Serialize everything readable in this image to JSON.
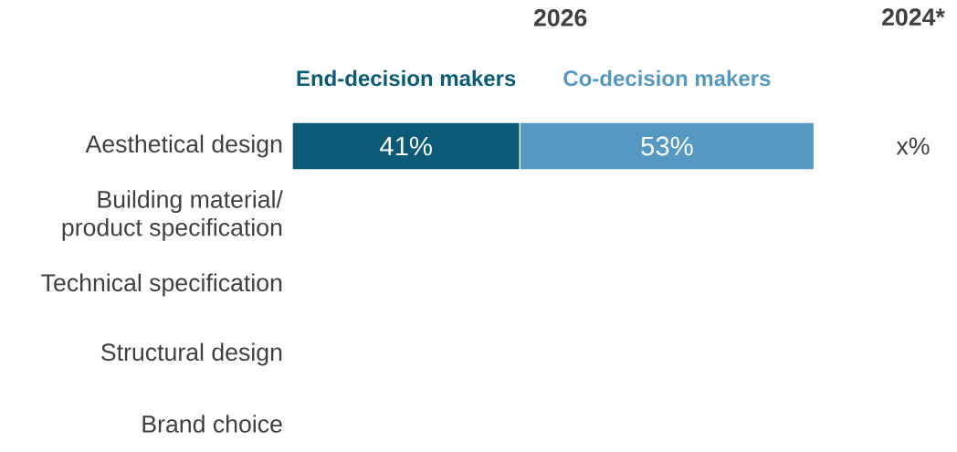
{
  "chart_data": {
    "type": "bar",
    "orientation": "horizontal",
    "stacked": true,
    "title": "2026",
    "categories": [
      "Aesthetical design",
      "Building material/\nproduct specification",
      "Technical specification",
      "Structural design",
      "Brand choice"
    ],
    "series": [
      {
        "name": "End-decision makers",
        "color": "#0b5b78",
        "values": [
          41,
          null,
          null,
          null,
          null
        ],
        "value_labels": [
          "41%",
          null,
          null,
          null,
          null
        ]
      },
      {
        "name": "Co-decision makers",
        "color": "#5598c2",
        "values": [
          53,
          null,
          null,
          null,
          null
        ],
        "value_labels": [
          "53%",
          null,
          null,
          null,
          null
        ]
      }
    ],
    "annotations": [
      "2024*",
      "x%"
    ],
    "legend": false,
    "grid": false
  }
}
